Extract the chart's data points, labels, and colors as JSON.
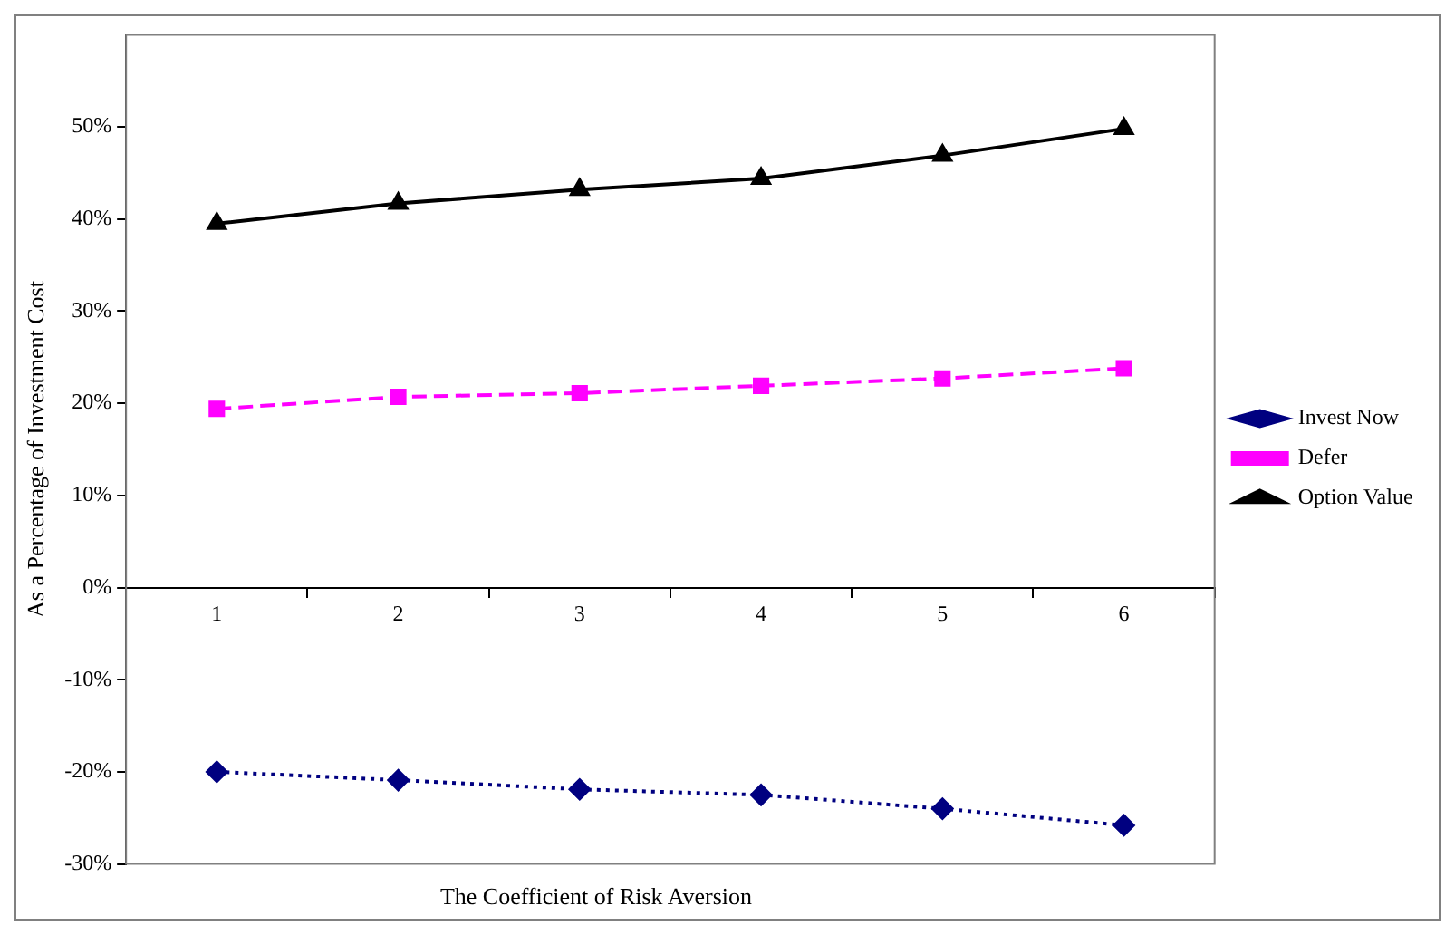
{
  "chart_data": {
    "type": "line",
    "xlabel": "The Coefficient of Risk Aversion",
    "ylabel": "As a Percentage of Investment Cost",
    "categories": [
      "1",
      "2",
      "3",
      "4",
      "5",
      "6"
    ],
    "series": [
      {
        "name": "Invest Now",
        "color": "#000080",
        "values": [
          -20.0,
          -20.9,
          -21.9,
          -22.5,
          -24.0,
          -25.8
        ],
        "marker": "diamond",
        "line_style": "dotted"
      },
      {
        "name": "Defer",
        "color": "#ff00ff",
        "values": [
          19.4,
          20.7,
          21.1,
          21.9,
          22.7,
          23.8
        ],
        "marker": "square",
        "line_style": "dashed"
      },
      {
        "name": "Option Value",
        "color": "#000000",
        "values": [
          39.5,
          41.7,
          43.2,
          44.4,
          46.9,
          49.8
        ],
        "marker": "triangle",
        "line_style": "solid"
      }
    ],
    "ylim": [
      -30,
      60
    ],
    "yticks": [
      {
        "value": -30,
        "label": "-30%"
      },
      {
        "value": -20,
        "label": "-20%"
      },
      {
        "value": -10,
        "label": "-10%"
      },
      {
        "value": 0,
        "label": "0%"
      },
      {
        "value": 10,
        "label": "10%"
      },
      {
        "value": 20,
        "label": "20%"
      },
      {
        "value": 30,
        "label": "30%"
      },
      {
        "value": 40,
        "label": "40%"
      },
      {
        "value": 50,
        "label": "50%"
      }
    ],
    "grid": false,
    "legend": "right"
  }
}
